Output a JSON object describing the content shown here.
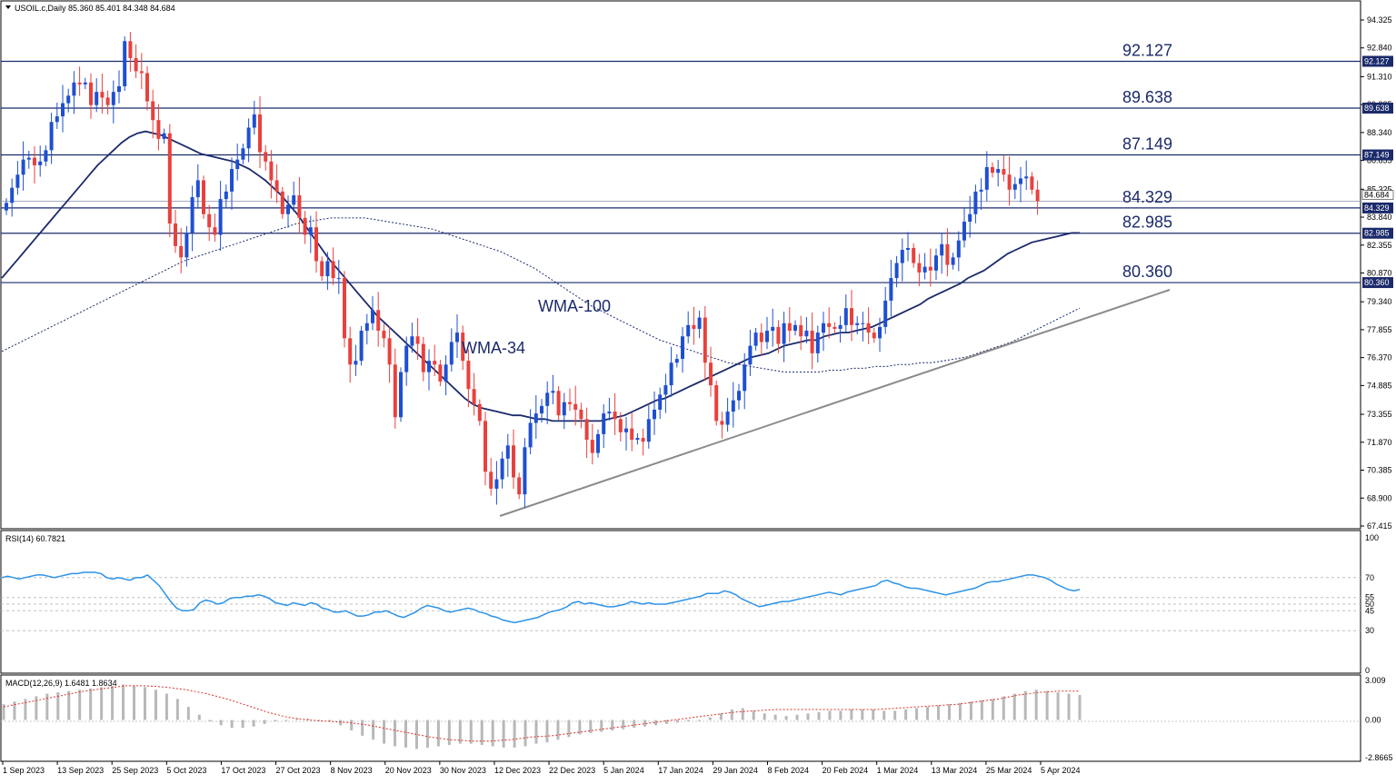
{
  "symbol_info": "USOIL.c,Daily  85.360 85.401 84.348 84.684",
  "colors": {
    "bull": "#1f4fd1",
    "bear": "#e8413d",
    "wick": "#333333",
    "wma34": "#1b2a6b",
    "wma100": "#1b2a6b",
    "level": "#1b2a6b",
    "trend": "#8a8a8a",
    "rsi": "#2c93e8",
    "macd_hist": "#b8b8b8",
    "macd_signal": "#e0322b",
    "badge_bg": "#1b2a6b",
    "badge_text": "#ffffff"
  },
  "price_axis": {
    "ticks": [
      "94.325",
      "92.840",
      "91.310",
      "89.825",
      "88.340",
      "86.855",
      "85.325",
      "83.840",
      "82.355",
      "80.870",
      "79.340",
      "77.855",
      "76.370",
      "74.885",
      "73.355",
      "71.870",
      "70.385",
      "68.900",
      "67.415"
    ],
    "min": 67.415,
    "max": 94.325
  },
  "levels": [
    {
      "value": 92.127,
      "label": "92.127",
      "badge": "92.127"
    },
    {
      "value": 89.638,
      "label": "89.638",
      "badge": "89.638"
    },
    {
      "value": 87.149,
      "label": "87.149",
      "badge": "87.149"
    },
    {
      "value": 84.329,
      "label": "84.329",
      "badge": "84.329"
    },
    {
      "value": 82.985,
      "label": "82.985",
      "badge": "82.985"
    },
    {
      "value": 80.36,
      "label": "80.360",
      "badge": "80.360"
    }
  ],
  "current_price_badge": "84.684",
  "indicator_labels": {
    "wma34": "WMA-34",
    "wma100": "WMA-100"
  },
  "rsi": {
    "title": "RSI(14) 60.7821",
    "ticks": [
      "100",
      "70",
      "55",
      "50",
      "45",
      "30",
      "0"
    ]
  },
  "macd": {
    "title": "MACD(12,26,9) 1.6481 1.8634",
    "ticks": [
      "3.009",
      "0.00",
      "-2.8665"
    ]
  },
  "time_axis": [
    "1 Sep 2023",
    "13 Sep 2023",
    "25 Sep 2023",
    "5 Oct 2023",
    "17 Oct 2023",
    "27 Oct 2023",
    "8 Nov 2023",
    "20 Nov 2023",
    "30 Nov 2023",
    "12 Dec 2023",
    "22 Dec 2023",
    "5 Jan 2024",
    "17 Jan 2024",
    "29 Jan 2024",
    "8 Feb 2024",
    "20 Feb 2024",
    "1 Mar 2024",
    "13 Mar 2024",
    "25 Mar 2024",
    "5 Apr 2024"
  ],
  "chart_data": {
    "type": "candlestick",
    "closes": [
      84.6,
      85.4,
      86.1,
      86.9,
      87.0,
      86.6,
      86.8,
      87.4,
      88.9,
      89.2,
      89.9,
      90.3,
      91.0,
      90.9,
      91.0,
      89.8,
      90.5,
      90.2,
      89.8,
      90.5,
      90.8,
      93.2,
      92.3,
      91.6,
      91.5,
      90.0,
      89.0,
      88.0,
      88.3,
      83.5,
      82.3,
      81.7,
      83.0,
      84.9,
      85.8,
      84.0,
      83.3,
      82.9,
      84.8,
      85.2,
      86.4,
      86.9,
      87.5,
      88.6,
      89.3,
      87.3,
      86.8,
      85.8,
      85.2,
      84.0,
      84.5,
      85.0,
      83.8,
      82.9,
      83.3,
      81.5,
      80.7,
      81.5,
      80.6,
      80.6,
      77.4,
      76.0,
      76.2,
      77.8,
      78.2,
      78.9,
      77.8,
      77.4,
      76.0,
      73.2,
      75.6,
      77.0,
      77.5,
      77.1,
      75.6,
      76.2,
      76.0,
      75.1,
      76.0,
      77.2,
      77.7,
      76.2,
      74.7,
      73.9,
      73.0,
      70.3,
      69.4,
      69.9,
      71.0,
      71.7,
      70.0,
      69.1,
      71.6,
      72.9,
      73.4,
      73.8,
      74.5,
      74.6,
      73.3,
      74.0,
      73.9,
      73.6,
      73.1,
      72.0,
      71.3,
      72.3,
      73.4,
      73.5,
      73.1,
      72.4,
      72.6,
      72.0,
      72.1,
      71.9,
      73.1,
      73.6,
      74.4,
      74.9,
      76.1,
      76.3,
      77.5,
      78.1,
      77.9,
      78.5,
      76.1,
      74.9,
      73.0,
      72.8,
      73.5,
      74.1,
      74.6,
      76.0,
      77.0,
      77.7,
      77.2,
      77.8,
      78.0,
      77.1,
      78.2,
      77.8,
      78.1,
      77.5,
      77.8,
      76.6,
      77.7,
      78.2,
      78.0,
      77.9,
      78.1,
      79.0,
      78.1,
      78.2,
      78.2,
      77.7,
      77.4,
      78.0,
      79.4,
      80.6,
      81.4,
      82.1,
      82.2,
      81.4,
      80.9,
      81.2,
      81.0,
      81.8,
      82.4,
      81.3,
      81.7,
      82.6,
      83.6,
      84.0,
      85.2,
      85.3,
      86.5,
      86.2,
      86.4,
      86.1,
      85.3,
      85.6,
      85.9,
      86.0,
      85.3,
      84.7
    ],
    "wma34": [
      80.6,
      81.1,
      81.6,
      82.1,
      82.6,
      83.1,
      83.6,
      84.1,
      84.6,
      85.1,
      85.6,
      86.1,
      86.6,
      87.0,
      87.4,
      87.8,
      88.1,
      88.3,
      88.4,
      88.3,
      88.2,
      88.0,
      87.8,
      87.6,
      87.4,
      87.2,
      87.1,
      87.0,
      86.9,
      86.8,
      86.6,
      86.4,
      86.1,
      85.8,
      85.4,
      85.0,
      84.5,
      84.0,
      83.4,
      82.8,
      82.2,
      81.6,
      81.1,
      80.6,
      80.1,
      79.6,
      79.1,
      78.6,
      78.2,
      77.8,
      77.4,
      77.0,
      76.6,
      76.2,
      75.8,
      75.4,
      75.0,
      74.6,
      74.2,
      73.9,
      73.7,
      73.6,
      73.5,
      73.4,
      73.3,
      73.3,
      73.2,
      73.1,
      73.1,
      73.0,
      73.0,
      73.0,
      73.0,
      73.0,
      73.0,
      73.0,
      73.1,
      73.2,
      73.3,
      73.5,
      73.7,
      73.9,
      74.1,
      74.2,
      74.4,
      74.6,
      74.8,
      75.0,
      75.2,
      75.4,
      75.6,
      75.8,
      76.0,
      76.2,
      76.4,
      76.5,
      76.6,
      76.8,
      77.0,
      77.1,
      77.2,
      77.3,
      77.3,
      77.5,
      77.6,
      77.7,
      77.7,
      77.8,
      77.9,
      78.0,
      78.2,
      78.4,
      78.6,
      78.8,
      79.0,
      79.2,
      79.5,
      79.7,
      79.9,
      80.1,
      80.3,
      80.6,
      80.8,
      81.0,
      81.3,
      81.6,
      81.9,
      82.1,
      82.3,
      82.5,
      82.6,
      82.7,
      82.8,
      82.9,
      83.0,
      83.0
    ],
    "wma100": [
      76.7,
      77.0,
      77.3,
      77.6,
      77.9,
      78.2,
      78.5,
      78.8,
      79.1,
      79.4,
      79.7,
      80.0,
      80.3,
      80.6,
      80.9,
      81.2,
      81.5,
      81.7,
      81.9,
      82.1,
      82.3,
      82.5,
      82.7,
      82.9,
      83.1,
      83.3,
      83.5,
      83.6,
      83.7,
      83.8,
      83.8,
      83.8,
      83.8,
      83.7,
      83.6,
      83.5,
      83.4,
      83.3,
      83.2,
      83.0,
      82.8,
      82.6,
      82.4,
      82.2,
      82.0,
      81.7,
      81.4,
      81.1,
      80.7,
      80.3,
      79.9,
      79.5,
      79.1,
      78.8,
      78.5,
      78.2,
      77.9,
      77.6,
      77.3,
      77.1,
      76.9,
      76.7,
      76.5,
      76.3,
      76.1,
      76.0,
      75.9,
      75.8,
      75.7,
      75.6,
      75.6,
      75.6,
      75.6,
      75.7,
      75.7,
      75.8,
      75.8,
      75.9,
      75.9,
      76.0,
      76.0,
      76.1,
      76.1,
      76.2,
      76.3,
      76.4,
      76.6,
      76.8,
      77.0,
      77.2,
      77.5,
      77.8,
      78.1,
      78.4,
      78.7,
      79.0
    ],
    "rsi": [
      70,
      71,
      70,
      69,
      70,
      71,
      72,
      72,
      71,
      70,
      71,
      72,
      73,
      73,
      74,
      74,
      74,
      73,
      70,
      69,
      70,
      69,
      68,
      70,
      70,
      72,
      68,
      64,
      58,
      52,
      47,
      45,
      45,
      46,
      51,
      53,
      52,
      50,
      51,
      54,
      55,
      55,
      56,
      56,
      57,
      56,
      54,
      51,
      50,
      49,
      51,
      50,
      49,
      51,
      50,
      47,
      46,
      44,
      44,
      45,
      43,
      41,
      41,
      42,
      44,
      44,
      45,
      43,
      41,
      40,
      42,
      44,
      47,
      49,
      48,
      47,
      45,
      44,
      45,
      46,
      47,
      46,
      44,
      43,
      41,
      40,
      38,
      37,
      36,
      37,
      38,
      39,
      40,
      42,
      44,
      45,
      46,
      48,
      51,
      52,
      50,
      51,
      50,
      49,
      48,
      48,
      49,
      50,
      52,
      51,
      50,
      51,
      50,
      50,
      50,
      51,
      52,
      53,
      54,
      55,
      56,
      58,
      58,
      58,
      60,
      59,
      57,
      54,
      52,
      50,
      48,
      49,
      50,
      51,
      52,
      52,
      53,
      54,
      55,
      56,
      57,
      58,
      59,
      58,
      57,
      59,
      60,
      61,
      62,
      63,
      64,
      67,
      68,
      66,
      65,
      63,
      62,
      62,
      61,
      60,
      59,
      58,
      57,
      58,
      59,
      60,
      61,
      62,
      64,
      66,
      67,
      67,
      68,
      69,
      70,
      71,
      72,
      72,
      71,
      70,
      68,
      65,
      63,
      61,
      60,
      61
    ],
    "macd_hist": [
      1.2,
      1.4,
      1.6,
      1.8,
      2.0,
      2.1,
      2.2,
      2.3,
      2.4,
      2.5,
      2.6,
      2.7,
      2.6,
      2.5,
      2.3,
      2.0,
      1.6,
      1.0,
      0.4,
      -0.1,
      -0.4,
      -0.6,
      -0.6,
      -0.5,
      -0.3,
      -0.1,
      0.0,
      0.1,
      0.1,
      0.0,
      -0.1,
      -0.4,
      -0.8,
      -1.2,
      -1.5,
      -1.8,
      -2.0,
      -2.1,
      -2.2,
      -2.1,
      -2.0,
      -1.9,
      -1.8,
      -1.8,
      -1.9,
      -2.0,
      -2.1,
      -2.1,
      -2.0,
      -1.8,
      -1.7,
      -1.5,
      -1.3,
      -1.1,
      -1.0,
      -0.9,
      -0.8,
      -0.7,
      -0.6,
      -0.5,
      -0.4,
      -0.3,
      -0.2,
      -0.1,
      0.0,
      0.2,
      0.5,
      0.8,
      0.9,
      0.7,
      0.5,
      0.4,
      0.3,
      0.4,
      0.5,
      0.6,
      0.7,
      0.7,
      0.8,
      0.8,
      0.8,
      0.7,
      0.7,
      0.8,
      0.9,
      1.0,
      1.1,
      1.2,
      1.3,
      1.4,
      1.5,
      1.6,
      1.8,
      2.0,
      2.2,
      2.3,
      2.2,
      2.1,
      2.0,
      1.9
    ],
    "macd_signal": [
      1.0,
      1.3,
      1.6,
      1.9,
      2.2,
      2.4,
      2.6,
      2.6,
      2.5,
      2.3,
      2.0,
      1.6,
      1.1,
      0.6,
      0.2,
      0.0,
      -0.1,
      -0.2,
      -0.4,
      -0.7,
      -1.0,
      -1.3,
      -1.5,
      -1.6,
      -1.6,
      -1.5,
      -1.3,
      -1.2,
      -1.0,
      -0.8,
      -0.6,
      -0.4,
      -0.2,
      0.0,
      0.2,
      0.4,
      0.6,
      0.7,
      0.8,
      0.8,
      0.8,
      0.8,
      0.8,
      0.8,
      0.9,
      1.0,
      1.1,
      1.2,
      1.4,
      1.6,
      1.9,
      2.1,
      2.2,
      2.2
    ],
    "price_ylim": [
      67.415,
      94.325
    ],
    "rsi_ylim": [
      0,
      100
    ],
    "macd_ylim": [
      -2.8665,
      3.009
    ]
  }
}
